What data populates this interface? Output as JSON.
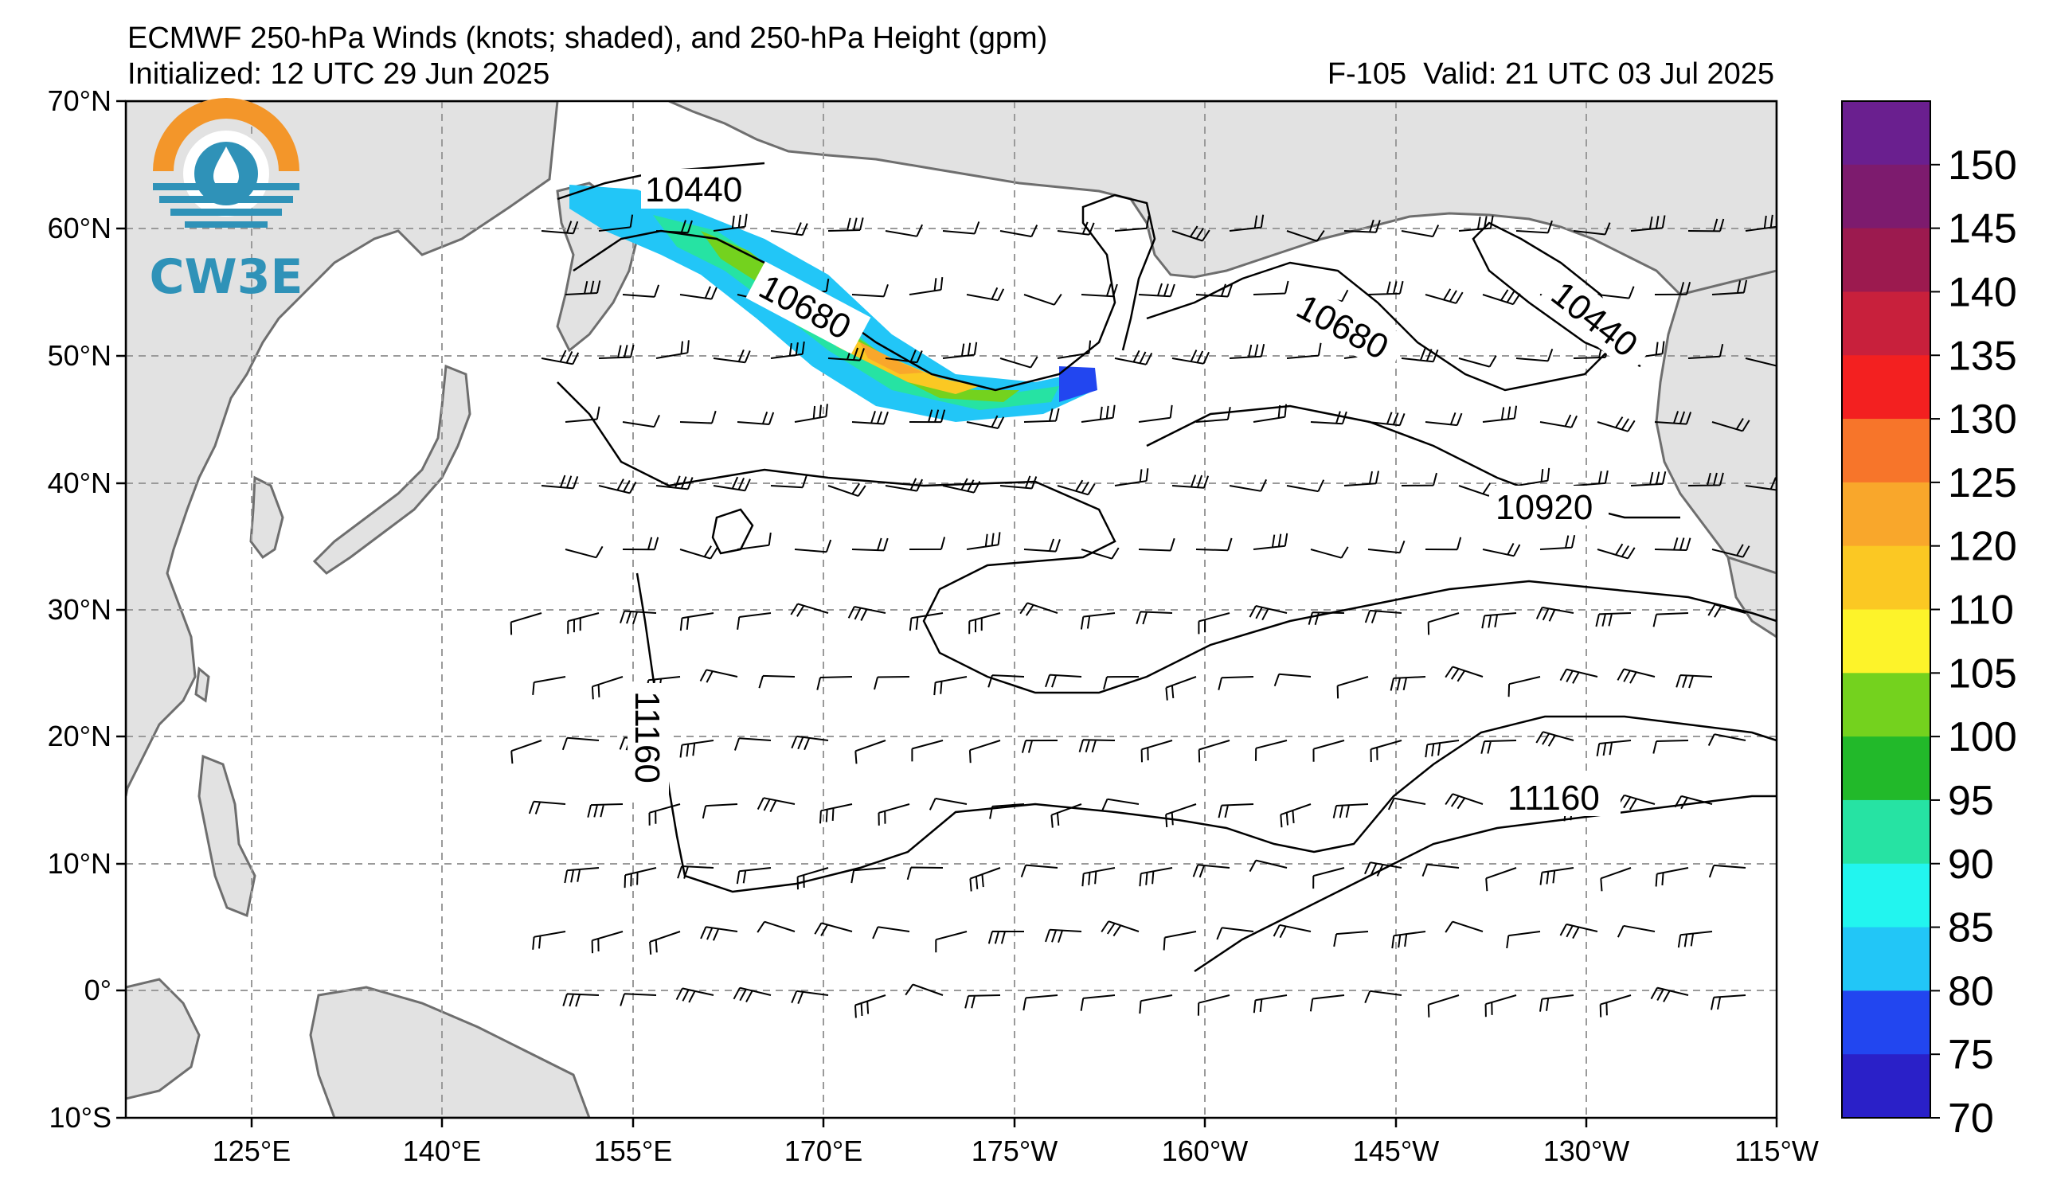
{
  "header": {
    "title": "ECMWF 250-hPa Winds (knots; shaded), and 250-hPa Height (gpm)",
    "initialized": "Initialized: 12 UTC 29 Jun 2025",
    "forecast_hour": "F-105",
    "valid": "Valid: 21 UTC 03 Jul 2025"
  },
  "logo": {
    "text": "CW3E",
    "icon": "cw3e-sun-water-logo-icon"
  },
  "axes": {
    "lat_labels": [
      "70°N",
      "60°N",
      "50°N",
      "40°N",
      "30°N",
      "20°N",
      "10°N",
      "0°",
      "10°S"
    ],
    "lon_labels": [
      "125°E",
      "140°E",
      "155°E",
      "170°E",
      "175°W",
      "160°W",
      "145°W",
      "130°W",
      "115°W"
    ]
  },
  "contour_labels": [
    "10440",
    "10680",
    "10680",
    "10440",
    "10920",
    "11160",
    "11160"
  ],
  "colorbar": {
    "labels": [
      "150",
      "145",
      "140",
      "135",
      "130",
      "125",
      "120",
      "110",
      "105",
      "100",
      "95",
      "90",
      "85",
      "80",
      "75",
      "70"
    ],
    "colors": [
      "#6a1f8f",
      "#7d1b6e",
      "#9c1a4f",
      "#c8203c",
      "#f32020",
      "#f7752a",
      "#f9a72b",
      "#fbc823",
      "#fdf32a",
      "#74d21e",
      "#22b92a",
      "#26e3a3",
      "#22f5ef",
      "#22c6f7",
      "#2246f0",
      "#2a20c8"
    ]
  },
  "colors": {
    "land": "#e2e2e2",
    "coast": "#6e6e6e",
    "grid": "#9a9a9a"
  }
}
